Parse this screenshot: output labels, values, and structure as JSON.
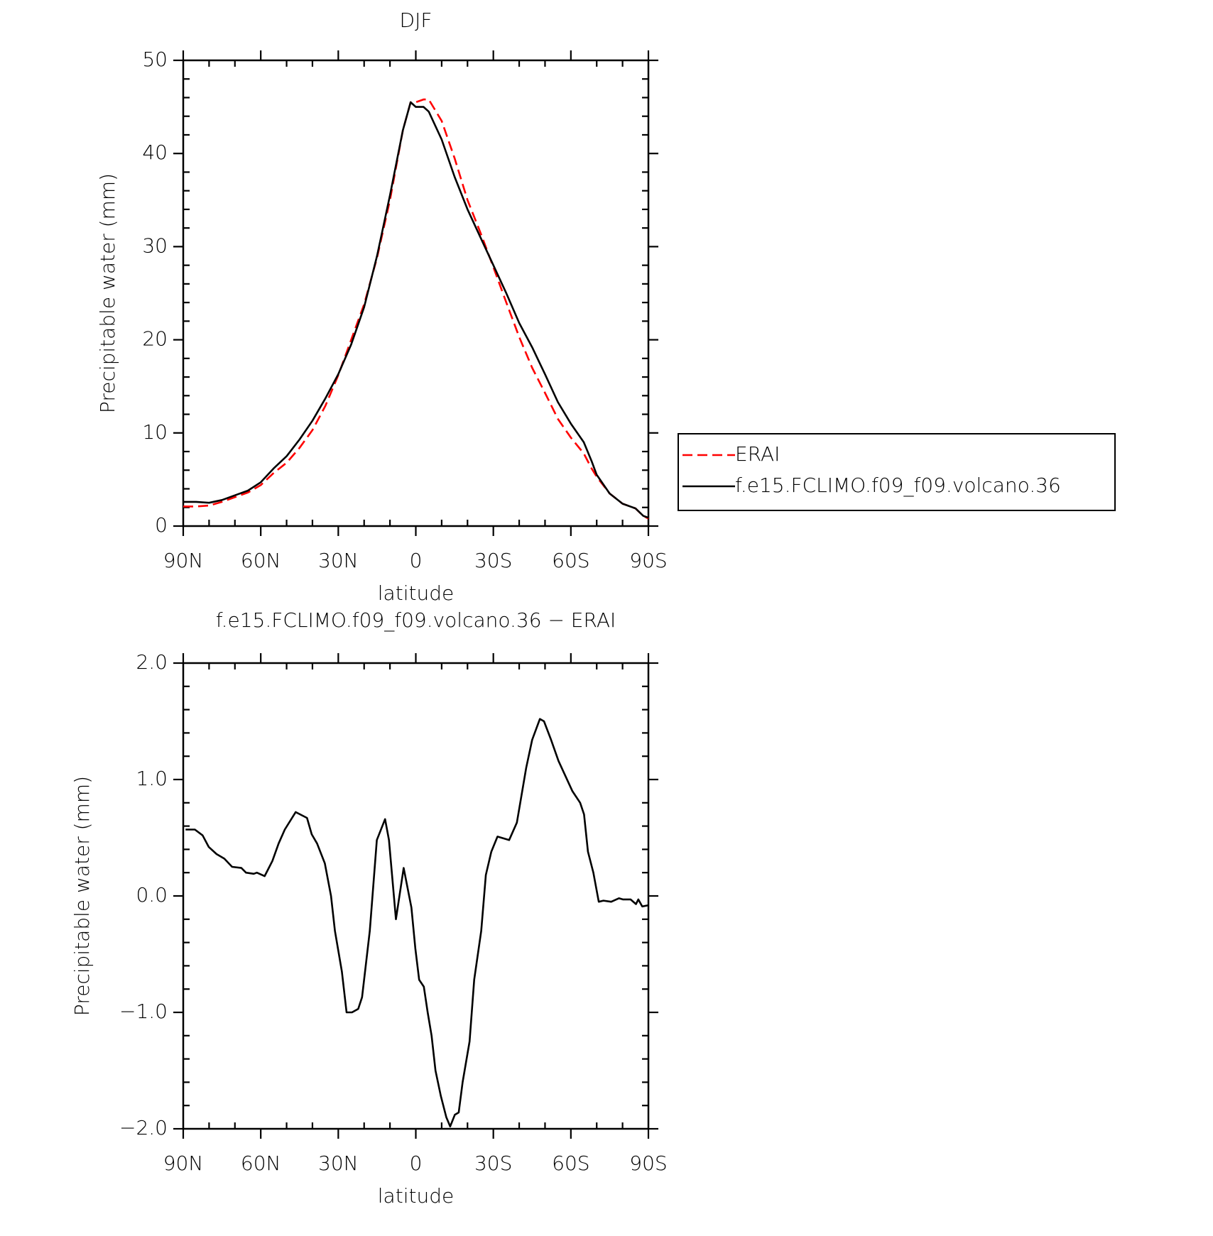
{
  "chart_data": [
    {
      "type": "line",
      "title": "DJF",
      "xlabel": "latitude",
      "ylabel": "Precipitable water (mm)",
      "xlim": [
        90,
        -90
      ],
      "xticks": [
        {
          "value": 90,
          "label": "90N"
        },
        {
          "value": 60,
          "label": "60N"
        },
        {
          "value": 30,
          "label": "30N"
        },
        0,
        {
          "value": -30,
          "label": "30S"
        },
        {
          "value": -60,
          "label": "60S"
        },
        {
          "value": -90,
          "label": "90S"
        }
      ],
      "ylim": [
        0,
        50
      ],
      "yticks": [
        0,
        10,
        20,
        30,
        40,
        50
      ],
      "legend": "right",
      "x": [
        90,
        85,
        80,
        75,
        70,
        65,
        60,
        55,
        50,
        45,
        40,
        35,
        30,
        25,
        20,
        15,
        10,
        5,
        2,
        0,
        -3,
        -5,
        -10,
        -15,
        -20,
        -25,
        -30,
        -35,
        -40,
        -45,
        -50,
        -55,
        -60,
        -65,
        -68,
        -70,
        -75,
        -80,
        -85,
        -88,
        -90
      ],
      "series": [
        {
          "name": "ERAI",
          "color": "#ff0000",
          "dash": true,
          "values": [
            2.1,
            2.1,
            2.2,
            2.6,
            3.1,
            3.6,
            4.4,
            5.7,
            6.8,
            8.4,
            10.3,
            12.9,
            16.2,
            20,
            23.8,
            28.8,
            35,
            42.5,
            45.5,
            45.5,
            45.8,
            45.8,
            43.5,
            39.5,
            35,
            31.5,
            27.8,
            24,
            20.3,
            17,
            14.3,
            11.5,
            9.5,
            7.8,
            6.2,
            5.3,
            3.5,
            2.4,
            1.9,
            1.1,
            0.8
          ]
        },
        {
          "name": "f.e15.FCLIMO.f09_f09.volcano.36",
          "color": "#000000",
          "dash": false,
          "values": [
            2.6,
            2.6,
            2.5,
            2.8,
            3.3,
            3.8,
            4.7,
            6.2,
            7.5,
            9.3,
            11.3,
            13.7,
            16.3,
            19.5,
            23.5,
            29,
            35.5,
            42.5,
            45.5,
            45,
            45,
            44.5,
            41.5,
            37.5,
            34,
            31,
            28,
            25,
            21.8,
            19.2,
            16.3,
            13.3,
            11,
            9,
            7,
            5.5,
            3.5,
            2.4,
            1.9,
            1.1,
            0.9
          ]
        }
      ]
    },
    {
      "type": "line",
      "title": "f.e15.FCLIMO.f09_f09.volcano.36 − ERAI",
      "xlabel": "latitude",
      "ylabel": "Precipitable water (mm)",
      "xlim": [
        90,
        -90
      ],
      "xticks": [
        {
          "value": 90,
          "label": "90N"
        },
        {
          "value": 60,
          "label": "60N"
        },
        {
          "value": 30,
          "label": "30N"
        },
        0,
        {
          "value": -30,
          "label": "30S"
        },
        {
          "value": -60,
          "label": "60S"
        },
        {
          "value": -90,
          "label": "90S"
        }
      ],
      "ylim": [
        -2,
        2
      ],
      "yticks": [
        {
          "value": -2,
          "label": "−2.0"
        },
        {
          "value": -1,
          "label": "−1.0"
        },
        {
          "value": 0,
          "label": "0.0"
        },
        {
          "value": 1,
          "label": "1.0"
        },
        {
          "value": 2,
          "label": "2.0"
        }
      ],
      "x": [
        89.1,
        85.5,
        82.5,
        80.1,
        77.1,
        74.1,
        71.1,
        67.5,
        65.7,
        62.7,
        61.5,
        58.5,
        55.5,
        53.1,
        50.7,
        46.5,
        42.1,
        40.3,
        38.2,
        35.2,
        32.8,
        31.3,
        28.6,
        26.8,
        24.7,
        22.3,
        20.8,
        17.8,
        15.1,
        11.9,
        10.4,
        7.7,
        4.7,
        1.7,
        0.2,
        -1.3,
        -3.1,
        -4.6,
        -6.1,
        -7.6,
        -9.7,
        -11.8,
        -13.3,
        -15.1,
        -16.6,
        -18.1,
        -20.8,
        -22.6,
        -25.3,
        -27.1,
        -29.2,
        -31.6,
        -36.1,
        -39.1,
        -42.7,
        -45,
        -48,
        -49.6,
        -52.2,
        -55.2,
        -60.6,
        -63.6,
        -65.1,
        -66.6,
        -68.7,
        -70.8,
        -72.6,
        -75.6,
        -78.6,
        -80.1,
        -83.1,
        -85.2,
        -86.1,
        -87.6,
        -90
      ],
      "series": [
        {
          "color": "#000000",
          "dash": false,
          "values": [
            0.57,
            0.57,
            0.52,
            0.42,
            0.36,
            0.32,
            0.25,
            0.24,
            0.2,
            0.19,
            0.2,
            0.17,
            0.3,
            0.45,
            0.57,
            0.72,
            0.67,
            0.53,
            0.45,
            0.28,
            0,
            -0.3,
            -0.65,
            -1.0,
            -1.0,
            -0.97,
            -0.87,
            -0.3,
            0.48,
            0.66,
            0.48,
            -0.2,
            0.24,
            -0.1,
            -0.45,
            -0.72,
            -0.78,
            -1.0,
            -1.2,
            -1.5,
            -1.72,
            -1.9,
            -1.98,
            -1.88,
            -1.86,
            -1.6,
            -1.25,
            -0.72,
            -0.3,
            0.18,
            0.38,
            0.51,
            0.48,
            0.63,
            1.1,
            1.34,
            1.52,
            1.5,
            1.35,
            1.16,
            0.9,
            0.8,
            0.7,
            0.38,
            0.2,
            -0.05,
            -0.04,
            -0.05,
            -0.02,
            -0.03,
            -0.03,
            -0.07,
            -0.03,
            -0.09,
            -0.08
          ]
        }
      ]
    }
  ]
}
